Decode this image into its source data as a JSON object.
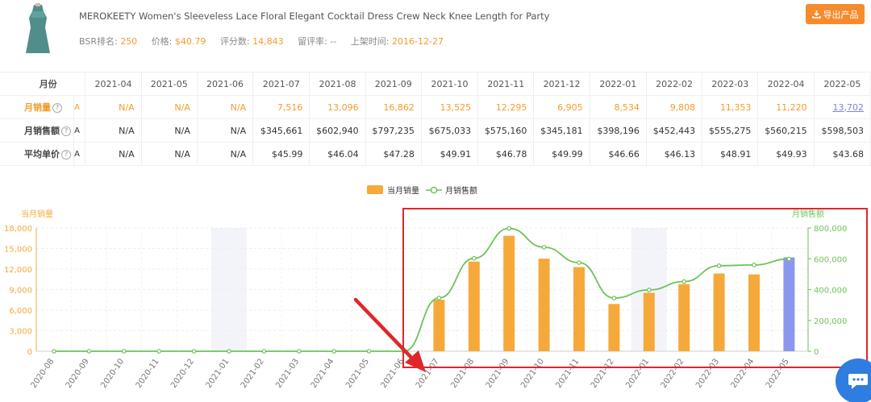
{
  "product": {
    "title": "MEROKEETY Women's Sleeveless Lace Floral Elegant Cocktail Dress Crew Neck Knee Length for Party",
    "bsr_label": "BSR排名:",
    "bsr_value": "250",
    "price_label": "价格:",
    "price_value": "$40.79",
    "rating_label": "评分数:",
    "rating_value": "14,843",
    "review_label": "留评率:",
    "review_value": "--",
    "listed_label": "上架时间:",
    "listed_value": "2016-12-27",
    "export_label": "导出产品",
    "image_icon": "dress-thumbnail"
  },
  "table": {
    "header_label": "月份",
    "months": [
      "2021-04",
      "2021-05",
      "2021-06",
      "2021-07",
      "2021-08",
      "2021-09",
      "2021-10",
      "2021-11",
      "2021-12",
      "2022-01",
      "2022-02",
      "2022-03",
      "2022-04",
      "2022-05"
    ],
    "rows": [
      {
        "label": "月销量",
        "flag": "A",
        "values": [
          "N/A",
          "N/A",
          "N/A",
          "7,516",
          "13,096",
          "16,862",
          "13,525",
          "12,295",
          "6,905",
          "8,534",
          "9,808",
          "11,353",
          "11,220",
          "13,702"
        ]
      },
      {
        "label": "月销售额",
        "flag": "A",
        "values": [
          "N/A",
          "N/A",
          "N/A",
          "$345,661",
          "$602,940",
          "$797,235",
          "$675,033",
          "$575,160",
          "$345,181",
          "$398,196",
          "$452,443",
          "$555,275",
          "$560,215",
          "$598,503"
        ]
      },
      {
        "label": "平均单价",
        "flag": "A",
        "values": [
          "N/A",
          "N/A",
          "N/A",
          "$45.99",
          "$46.04",
          "$47.28",
          "$49.91",
          "$46.78",
          "$49.99",
          "$46.66",
          "$46.13",
          "$48.91",
          "$49.93",
          "$43.68"
        ]
      }
    ]
  },
  "colors": {
    "accent_orange": "#f5a93b",
    "last_bar": "#8b97ee",
    "line_green": "#6cc35a",
    "highlight_red": "#e0262a",
    "chat_blue": "#2f7de1"
  },
  "chart_data": {
    "type": "bar",
    "legend": [
      "当月销量",
      "月销售额"
    ],
    "ylabel_left": "当月销量",
    "ylabel_right": "月销售额",
    "ylim_left": [
      0,
      18000
    ],
    "ylim_right": [
      0,
      800000
    ],
    "yticks_left": [
      "0",
      "3,000",
      "6,000",
      "9,000",
      "12,000",
      "15,000",
      "18,000"
    ],
    "yticks_right": [
      "0",
      "200,000",
      "400,000",
      "600,000",
      "800,000"
    ],
    "categories": [
      "2020-08",
      "2020-09",
      "2020-10",
      "2020-11",
      "2020-12",
      "2021-01",
      "2021-02",
      "2021-03",
      "2021-04",
      "2021-05",
      "2021-06",
      "2021-07",
      "2021-08",
      "2021-09",
      "2021-10",
      "2021-11",
      "2021-12",
      "2022-01",
      "2022-02",
      "2022-03",
      "2022-04",
      "2022-05"
    ],
    "series": [
      {
        "name": "当月销量",
        "type": "bar",
        "axis": "left",
        "values": [
          0,
          0,
          0,
          0,
          0,
          0,
          0,
          0,
          0,
          0,
          0,
          7516,
          13096,
          16862,
          13525,
          12295,
          6905,
          8534,
          9808,
          11353,
          11220,
          13702
        ]
      },
      {
        "name": "月销售额",
        "type": "line",
        "axis": "right",
        "values": [
          0,
          0,
          0,
          0,
          0,
          0,
          0,
          0,
          0,
          0,
          0,
          345661,
          602940,
          797235,
          675033,
          575160,
          345181,
          398196,
          452443,
          555275,
          560215,
          598503
        ]
      }
    ],
    "shaded_categories": [
      "2021-01",
      "2022-01"
    ],
    "highlight_categories": [
      "2021-07",
      "2022-05"
    ]
  }
}
